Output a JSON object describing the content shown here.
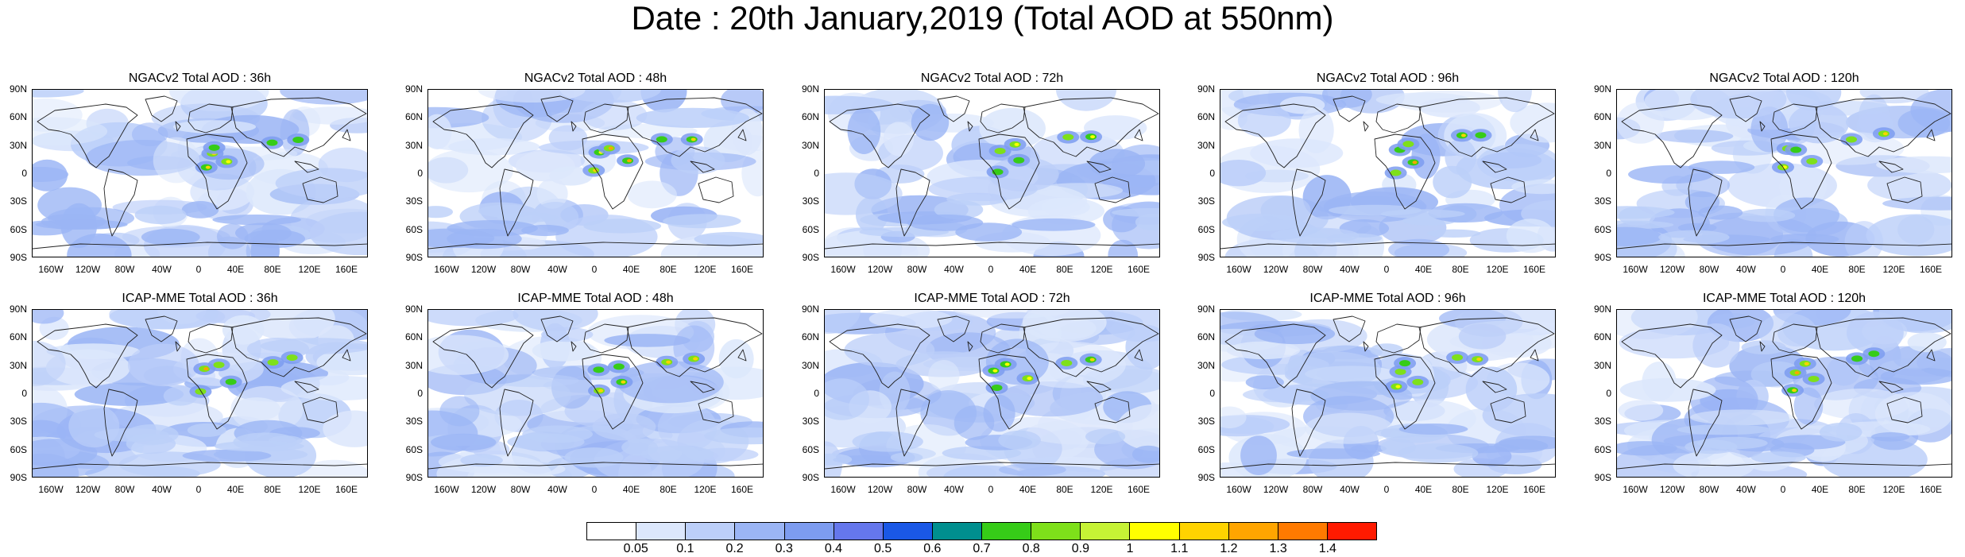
{
  "title": "Date : 20th January,2019 (Total AOD at 550nm)",
  "panels": [
    {
      "title": "NGACv2 Total AOD : 36h"
    },
    {
      "title": "NGACv2 Total AOD : 48h"
    },
    {
      "title": "NGACv2 Total AOD : 72h"
    },
    {
      "title": "NGACv2 Total AOD : 96h"
    },
    {
      "title": "NGACv2 Total AOD : 120h"
    },
    {
      "title": "ICAP-MME Total AOD : 36h"
    },
    {
      "title": "ICAP-MME Total AOD : 48h"
    },
    {
      "title": "ICAP-MME Total AOD : 72h"
    },
    {
      "title": "ICAP-MME Total AOD : 96h"
    },
    {
      "title": "ICAP-MME Total AOD : 120h"
    }
  ],
  "lat_labels": [
    "90N",
    "60N",
    "30N",
    "0",
    "30S",
    "60S",
    "90S"
  ],
  "lon_labels": [
    "160W",
    "120W",
    "80W",
    "40W",
    "0",
    "40E",
    "80E",
    "120E",
    "160E"
  ],
  "colorbar": {
    "labels": [
      "0.05",
      "0.1",
      "0.2",
      "0.3",
      "0.4",
      "0.5",
      "0.6",
      "0.7",
      "0.8",
      "0.9",
      "1",
      "1.1",
      "1.2",
      "1.3",
      "1.4"
    ],
    "colors": [
      "#ffffff",
      "#dce7fc",
      "#bccff9",
      "#9bb5f5",
      "#7d9cf0",
      "#6577ec",
      "#1a58e6",
      "#008f8f",
      "#36cc18",
      "#7ee01a",
      "#c6f335",
      "#ffff00",
      "#ffd300",
      "#ffa500",
      "#ff7a00",
      "#ff1a00"
    ]
  }
}
